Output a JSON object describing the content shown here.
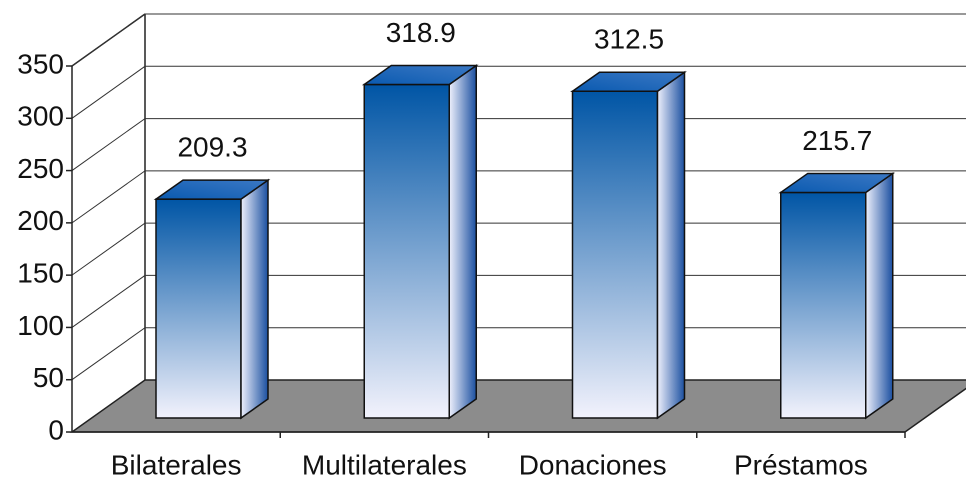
{
  "chart_data": {
    "type": "bar3d",
    "categories": [
      "Bilaterales",
      "Multilaterales",
      "Donaciones",
      "Préstamos"
    ],
    "values": [
      209.3,
      318.9,
      312.5,
      215.7
    ],
    "color": "#0055a5",
    "ylim": [
      0,
      350
    ],
    "yticks": [
      0,
      50,
      100,
      150,
      200,
      250,
      300,
      350
    ],
    "grid": true
  }
}
